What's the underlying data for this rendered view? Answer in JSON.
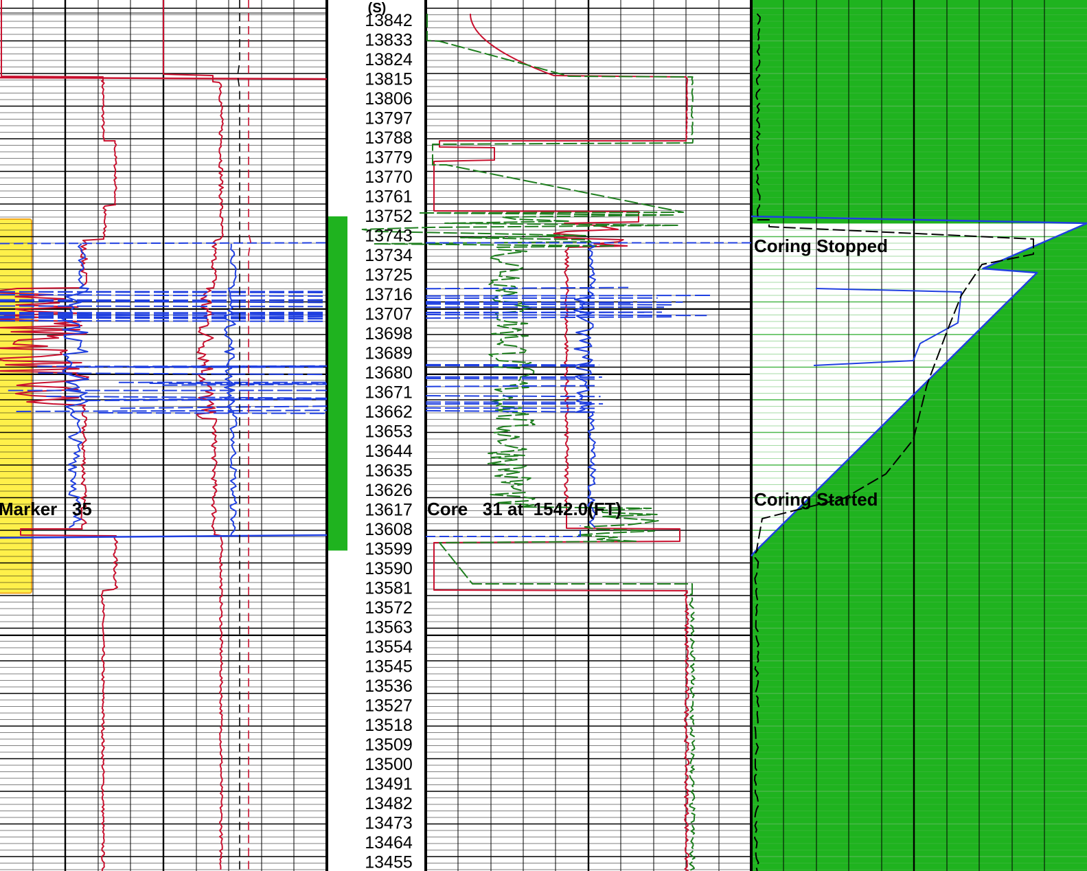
{
  "chart_data": {
    "type": "line",
    "title": "",
    "depth_axis": {
      "unit_label": "(S)",
      "top_value": 13842,
      "step": 9,
      "direction": "decreasing-downward",
      "tick_labels": [
        "13842",
        "13833",
        "13824",
        "13815",
        "13806",
        "13797",
        "13788",
        "13779",
        "13770",
        "13761",
        "13752",
        "13743",
        "13734",
        "13725",
        "13716",
        "13707",
        "13698",
        "13689",
        "13680",
        "13671",
        "13662",
        "13653",
        "13644",
        "13635",
        "13626",
        "13617",
        "13608",
        "13599",
        "13590",
        "13581",
        "13572",
        "13563",
        "13554",
        "13545",
        "13536",
        "13527",
        "13518",
        "13509",
        "13500",
        "13491",
        "13482",
        "13473",
        "13464",
        "13455"
      ]
    },
    "annotations": {
      "marker": "Marker   35",
      "core": "Core   31 at  1542.0(FT)",
      "coring_stopped": "Coring Stopped",
      "coring_started": "Coring Started"
    },
    "intervals": [
      {
        "name": "marker-zone",
        "depth_top": 13752,
        "depth_bottom": 13599,
        "color": "#fff04a"
      },
      {
        "name": "core-interval",
        "depth_top": 13752,
        "depth_bottom": 13599,
        "color": "#1fb31f"
      }
    ],
    "colors": {
      "crimson": "#c8102e",
      "blue": "#1f3fe0",
      "green": "#1e7e1e",
      "black": "#000000",
      "fill_green": "#1fb31f",
      "marker_yellow": "#fff04a",
      "marker_border": "#f0a820"
    },
    "grid": true
  }
}
